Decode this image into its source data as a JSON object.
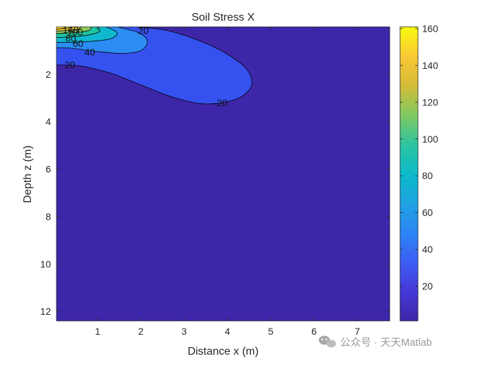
{
  "chart_data": {
    "type": "contourf",
    "title": "Soil Stress X",
    "xlabel": "Distance x (m)",
    "ylabel": "Depth z (m)",
    "xlim": [
      0.05,
      7.75
    ],
    "ylim": [
      12.4,
      0
    ],
    "y_reversed": true,
    "xticks": [
      1,
      2,
      3,
      4,
      5,
      6,
      7
    ],
    "yticks": [
      2,
      4,
      6,
      8,
      10,
      12
    ],
    "grid": false,
    "colormap": "parula",
    "colorbar": {
      "position": "right",
      "limits": [
        1,
        161
      ],
      "ticks": [
        20,
        40,
        60,
        80,
        100,
        120,
        140,
        160
      ]
    },
    "contour_levels": [
      20,
      40,
      60,
      80,
      100,
      120,
      140
    ],
    "contours": [
      {
        "level": 20,
        "color": "#3552f0",
        "points": [
          [
            1.9,
            0
          ],
          [
            2.6,
            0.15
          ],
          [
            3.3,
            0.55
          ],
          [
            3.95,
            1.1
          ],
          [
            4.45,
            1.8
          ],
          [
            4.55,
            2.5
          ],
          [
            4.2,
            3.05
          ],
          [
            3.5,
            3.25
          ],
          [
            2.8,
            3.0
          ],
          [
            2.0,
            2.45
          ],
          [
            1.3,
            1.95
          ],
          [
            0.6,
            1.65
          ],
          [
            0.05,
            1.6
          ]
        ]
      },
      {
        "level": 40,
        "color": "#2c8cf1",
        "points": [
          [
            1.45,
            0
          ],
          [
            1.95,
            0.25
          ],
          [
            2.15,
            0.6
          ],
          [
            2.0,
            1.0
          ],
          [
            1.55,
            1.12
          ],
          [
            0.9,
            1.02
          ],
          [
            0.4,
            0.9
          ],
          [
            0.05,
            0.88
          ]
        ]
      },
      {
        "level": 60,
        "color": "#10b8ce",
        "points": [
          [
            1.2,
            0
          ],
          [
            1.45,
            0.25
          ],
          [
            1.3,
            0.5
          ],
          [
            0.9,
            0.6
          ],
          [
            0.45,
            0.65
          ],
          [
            0.05,
            0.65
          ]
        ]
      },
      {
        "level": 80,
        "color": "#1dc3a1",
        "points": [
          [
            0.98,
            0
          ],
          [
            1.05,
            0.18
          ],
          [
            0.8,
            0.34
          ],
          [
            0.4,
            0.42
          ],
          [
            0.05,
            0.45
          ]
        ]
      },
      {
        "level": 100,
        "color": "#8bc859",
        "points": [
          [
            0.85,
            0
          ],
          [
            0.8,
            0.15
          ],
          [
            0.5,
            0.24
          ],
          [
            0.05,
            0.28
          ]
        ]
      },
      {
        "level": 120,
        "color": "#e0bc3a",
        "points": [
          [
            0.62,
            0
          ],
          [
            0.55,
            0.1
          ],
          [
            0.3,
            0.16
          ],
          [
            0.05,
            0.18
          ]
        ]
      },
      {
        "level": 140,
        "color": "#fad928",
        "points": [
          [
            0.4,
            0
          ],
          [
            0.3,
            0.06
          ],
          [
            0.05,
            0.09
          ]
        ]
      }
    ],
    "contour_labels": [
      {
        "text": "20",
        "x": 2.06,
        "y": 0.16
      },
      {
        "text": "20",
        "x": 3.88,
        "y": 3.2
      },
      {
        "text": "20",
        "x": 0.36,
        "y": 1.6
      },
      {
        "text": "40",
        "x": 0.82,
        "y": 1.06
      },
      {
        "text": "60",
        "x": 0.55,
        "y": 0.7
      },
      {
        "text": "80",
        "x": 0.38,
        "y": 0.48
      },
      {
        "text": "100",
        "x": 0.48,
        "y": 0.22
      },
      {
        "text": "140",
        "x": 0.38,
        "y": 0.12
      }
    ]
  },
  "watermark": {
    "icon": "wechat-icon",
    "text": "公众号 · 天天Matlab"
  }
}
